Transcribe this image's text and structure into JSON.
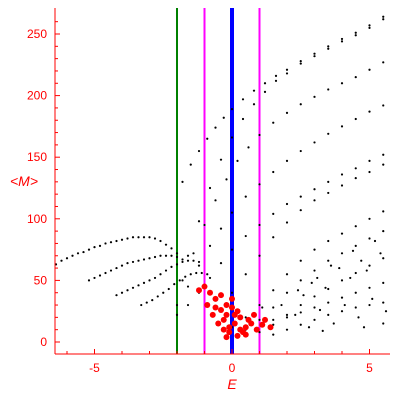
{
  "chart_data": {
    "type": "scatter",
    "title": "",
    "xlabel": "E",
    "ylabel": "<M>",
    "xlim": [
      -6.5,
      5.8
    ],
    "ylim": [
      -10,
      270
    ],
    "xticks": [
      -5,
      0,
      5
    ],
    "xtick_labels": [
      "-5",
      "0",
      "5"
    ],
    "yticks": [
      0,
      50,
      100,
      150,
      200,
      250
    ],
    "ytick_labels": [
      "0",
      "50",
      "100",
      "150",
      "200",
      "250"
    ],
    "grid": false,
    "colors": {
      "axes": "#ff0000",
      "points_black": "#000000",
      "points_red": "#ff0000",
      "line_green": "#008000",
      "line_magenta": "#ff00ff",
      "line_blue": "#0000ff"
    },
    "vertical_lines": [
      {
        "x": -2.0,
        "color": "#008000"
      },
      {
        "x": -1.0,
        "color": "#ff00ff"
      },
      {
        "x": 0.0,
        "color": "#0000ff"
      },
      {
        "x": 1.0,
        "color": "#ff00ff"
      }
    ],
    "series": [
      {
        "color": "#000000",
        "points": [
          [
            -6.4,
            63
          ],
          [
            -6.2,
            66
          ],
          [
            -6,
            68
          ],
          [
            -5.8,
            70
          ],
          [
            -5.6,
            72
          ],
          [
            -5.4,
            73
          ],
          [
            -5.2,
            75
          ],
          [
            -5,
            77
          ],
          [
            -4.8,
            78
          ],
          [
            -4.6,
            80
          ],
          [
            -4.4,
            81
          ],
          [
            -4.2,
            82
          ],
          [
            -4,
            83
          ],
          [
            -3.8,
            84
          ],
          [
            -3.6,
            85
          ],
          [
            -3.4,
            85
          ],
          [
            -3.2,
            85
          ],
          [
            -3,
            85
          ],
          [
            -2.8,
            84
          ],
          [
            -2.6,
            82
          ],
          [
            -2.4,
            79
          ],
          [
            -2.2,
            76
          ],
          [
            -2.0,
            72
          ]
        ]
      },
      {
        "color": "#000000",
        "points": [
          [
            -5.2,
            50
          ],
          [
            -5,
            52
          ],
          [
            -4.8,
            54
          ],
          [
            -4.6,
            56
          ],
          [
            -4.4,
            58
          ],
          [
            -4.2,
            60
          ],
          [
            -4,
            62
          ],
          [
            -3.8,
            64
          ],
          [
            -3.6,
            65
          ],
          [
            -3.4,
            66
          ],
          [
            -3.2,
            67
          ],
          [
            -3,
            68
          ],
          [
            -2.8,
            69
          ],
          [
            -2.6,
            70
          ],
          [
            -2.4,
            70
          ],
          [
            -2.2,
            70
          ],
          [
            -2.0,
            69
          ],
          [
            -1.8,
            67
          ]
        ]
      },
      {
        "color": "#000000",
        "points": [
          [
            -4.2,
            38
          ],
          [
            -4,
            40
          ],
          [
            -3.8,
            42
          ],
          [
            -3.6,
            44
          ],
          [
            -3.4,
            46
          ],
          [
            -3.2,
            48
          ],
          [
            -3,
            50
          ],
          [
            -2.8,
            52
          ],
          [
            -2.6,
            55
          ],
          [
            -2.4,
            58
          ],
          [
            -2.2,
            61
          ],
          [
            -2.0,
            63
          ],
          [
            -1.8,
            65
          ],
          [
            -1.6,
            66
          ],
          [
            -1.4,
            66
          ],
          [
            -1.2,
            65
          ]
        ]
      },
      {
        "color": "#000000",
        "points": [
          [
            -3.3,
            30
          ],
          [
            -3.1,
            32
          ],
          [
            -2.9,
            34
          ],
          [
            -2.7,
            37
          ],
          [
            -2.5,
            40
          ],
          [
            -2.3,
            43
          ],
          [
            -2.1,
            47
          ],
          [
            -1.9,
            50
          ],
          [
            -1.7,
            53
          ],
          [
            -1.5,
            55
          ],
          [
            -1.3,
            56
          ],
          [
            -1.1,
            56
          ],
          [
            -0.9,
            55
          ]
        ]
      },
      {
        "color": "#000000",
        "points": [
          [
            -2.0,
            22
          ],
          [
            -1.6,
            30
          ],
          [
            -1.2,
            40
          ],
          [
            -0.8,
            52
          ],
          [
            -0.4,
            64
          ],
          [
            0,
            75
          ],
          [
            0.5,
            86
          ],
          [
            1,
            95
          ],
          [
            1.5,
            104
          ],
          [
            2,
            112
          ],
          [
            2.5,
            118
          ],
          [
            3,
            124
          ],
          [
            3.5,
            130
          ],
          [
            4,
            136
          ],
          [
            4.5,
            141
          ],
          [
            5,
            147
          ],
          [
            5.5,
            152
          ]
        ]
      },
      {
        "color": "#000000",
        "points": [
          [
            -2.0,
            30
          ],
          [
            -1.6,
            45
          ],
          [
            -1.2,
            62
          ],
          [
            -0.8,
            78
          ],
          [
            -0.4,
            92
          ],
          [
            0,
            105
          ],
          [
            0.5,
            118
          ],
          [
            1,
            128
          ],
          [
            1.5,
            138
          ],
          [
            2,
            147
          ],
          [
            2.5,
            155
          ],
          [
            3,
            162
          ],
          [
            3.5,
            169
          ],
          [
            4,
            175
          ],
          [
            4.5,
            181
          ],
          [
            5,
            187
          ],
          [
            5.5,
            192
          ]
        ]
      },
      {
        "color": "#000000",
        "points": [
          [
            -1.8,
            50
          ],
          [
            -1.4,
            72
          ],
          [
            -1.0,
            95
          ],
          [
            -0.6,
            115
          ],
          [
            -0.2,
            132
          ],
          [
            0.2,
            147
          ],
          [
            0.6,
            158
          ],
          [
            1,
            168
          ],
          [
            1.5,
            178
          ],
          [
            2,
            186
          ],
          [
            2.5,
            193
          ],
          [
            3,
            199
          ],
          [
            3.5,
            205
          ],
          [
            4,
            210
          ],
          [
            4.5,
            215
          ],
          [
            5,
            221
          ],
          [
            5.5,
            227
          ]
        ]
      },
      {
        "color": "#000000",
        "points": [
          [
            -1.6,
            70
          ],
          [
            -1.2,
            98
          ],
          [
            -0.8,
            125
          ],
          [
            -0.4,
            148
          ],
          [
            0,
            166
          ],
          [
            0.4,
            181
          ],
          [
            0.8,
            193
          ],
          [
            1.2,
            203
          ],
          [
            1.6,
            212
          ],
          [
            2,
            218
          ],
          [
            2.5,
            226
          ],
          [
            3,
            232
          ],
          [
            3.5,
            238
          ],
          [
            4,
            244
          ],
          [
            4.5,
            249
          ],
          [
            5,
            255
          ],
          [
            5.5,
            262
          ]
        ]
      },
      {
        "color": "#000000",
        "points": [
          [
            -1.8,
            130
          ],
          [
            -1.5,
            144
          ],
          [
            -1.2,
            155
          ],
          [
            -0.9,
            165
          ],
          [
            -0.6,
            174
          ],
          [
            -0.3,
            182
          ],
          [
            0,
            189
          ],
          [
            0.4,
            197
          ],
          [
            0.8,
            204
          ],
          [
            1.2,
            210
          ],
          [
            1.6,
            216
          ],
          [
            2,
            221
          ],
          [
            2.5,
            228
          ],
          [
            3,
            234
          ],
          [
            3.5,
            240
          ],
          [
            4,
            246
          ],
          [
            4.5,
            251
          ],
          [
            5,
            257
          ],
          [
            5.5,
            264
          ]
        ]
      },
      {
        "color": "#000000",
        "points": [
          [
            0,
            12
          ],
          [
            0.5,
            20
          ],
          [
            1,
            30
          ],
          [
            1.5,
            42
          ],
          [
            2,
            55
          ],
          [
            2.5,
            66
          ],
          [
            3,
            75
          ],
          [
            3.5,
            82
          ],
          [
            4,
            88
          ],
          [
            4.5,
            94
          ],
          [
            5,
            100
          ],
          [
            5.5,
            106
          ]
        ]
      },
      {
        "color": "#000000",
        "points": [
          [
            0.5,
            10
          ],
          [
            1,
            18
          ],
          [
            1.5,
            28
          ],
          [
            2,
            40
          ],
          [
            2.5,
            50
          ],
          [
            3,
            58
          ],
          [
            3.5,
            66
          ],
          [
            4,
            72
          ],
          [
            4.5,
            78
          ],
          [
            5,
            84
          ],
          [
            5.5,
            90
          ]
        ]
      },
      {
        "color": "#000000",
        "points": [
          [
            0,
            40
          ],
          [
            0.5,
            55
          ],
          [
            1,
            70
          ],
          [
            1.5,
            85
          ],
          [
            2,
            97
          ],
          [
            2.5,
            107
          ],
          [
            3,
            115
          ],
          [
            3.5,
            121
          ],
          [
            4,
            127
          ],
          [
            4.5,
            133
          ],
          [
            5,
            138
          ],
          [
            5.5,
            144
          ]
        ]
      },
      {
        "color": "#000000",
        "points": [
          [
            1,
            8
          ],
          [
            1.5,
            14
          ],
          [
            2,
            22
          ],
          [
            2.5,
            30
          ],
          [
            3,
            37
          ],
          [
            3.5,
            43
          ],
          [
            4,
            50
          ],
          [
            4.5,
            56
          ],
          [
            5,
            62
          ],
          [
            5.5,
            68
          ]
        ]
      },
      {
        "color": "#000000",
        "points": [
          [
            1.5,
            6
          ],
          [
            2,
            10
          ],
          [
            2.5,
            14
          ],
          [
            3,
            18
          ],
          [
            3.5,
            22
          ],
          [
            4,
            25
          ],
          [
            4.5,
            28
          ],
          [
            5,
            30
          ],
          [
            5.5,
            32
          ]
        ]
      },
      {
        "color": "#000000",
        "points": [
          [
            2,
            20
          ],
          [
            2.5,
            24
          ],
          [
            3,
            28
          ],
          [
            3.5,
            32
          ],
          [
            4,
            36
          ],
          [
            4.5,
            40
          ],
          [
            5,
            44
          ],
          [
            5.5,
            48
          ]
        ]
      },
      {
        "color": "#000000",
        "points": [
          [
            1.5,
            18
          ],
          [
            2.3,
            22
          ],
          [
            2.8,
            12
          ],
          [
            3.2,
            26
          ],
          [
            3.7,
            15
          ],
          [
            4.1,
            30
          ],
          [
            4.6,
            20
          ],
          [
            5.1,
            35
          ],
          [
            5.6,
            25
          ],
          [
            2.6,
            38
          ],
          [
            3.4,
            44
          ],
          [
            4.3,
            52
          ],
          [
            4.9,
            58
          ],
          [
            2.9,
            48
          ],
          [
            3.9,
            60
          ],
          [
            4.7,
            66
          ],
          [
            5.4,
            72
          ],
          [
            1.8,
            30
          ],
          [
            2.4,
            42
          ],
          [
            3.1,
            52
          ],
          [
            3.6,
            62
          ],
          [
            4.4,
            74
          ],
          [
            5.2,
            82
          ],
          [
            0.8,
            22
          ],
          [
            1.1,
            28
          ],
          [
            3.3,
            9
          ],
          [
            4.8,
            12
          ],
          [
            5.5,
            15
          ]
        ]
      },
      {
        "color": "#ff0000",
        "points": [
          [
            -1.2,
            42
          ],
          [
            -1.0,
            45
          ],
          [
            -0.8,
            40
          ],
          [
            -0.6,
            35
          ],
          [
            -0.4,
            38
          ],
          [
            -0.2,
            30
          ],
          [
            0,
            28
          ],
          [
            0.2,
            25
          ],
          [
            -0.2,
            22
          ],
          [
            -0.4,
            26
          ],
          [
            -0.6,
            28
          ],
          [
            -0.3,
            18
          ],
          [
            0.1,
            15
          ],
          [
            0.3,
            20
          ],
          [
            0.5,
            12
          ],
          [
            0.7,
            15
          ],
          [
            0.9,
            10
          ],
          [
            1.1,
            14
          ],
          [
            -0.1,
            8
          ],
          [
            0.2,
            5
          ],
          [
            0.4,
            8
          ],
          [
            -0.3,
            10
          ],
          [
            -0.5,
            15
          ],
          [
            -0.7,
            22
          ],
          [
            -0.9,
            30
          ],
          [
            0.6,
            18
          ],
          [
            0.8,
            22
          ],
          [
            1.2,
            18
          ],
          [
            1.4,
            12
          ],
          [
            0.0,
            35
          ],
          [
            0.1,
            22
          ],
          [
            -0.1,
            12
          ],
          [
            0.3,
            10
          ],
          [
            0.5,
            6
          ],
          [
            -0.2,
            4
          ]
        ]
      }
    ]
  }
}
